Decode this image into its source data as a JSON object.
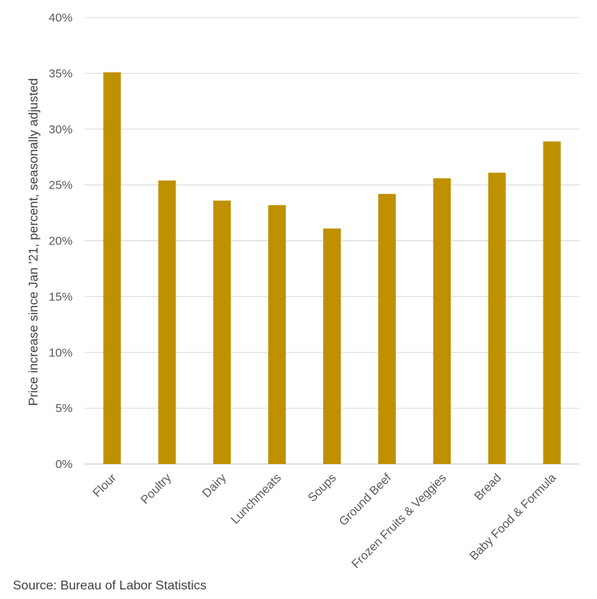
{
  "chart_data": {
    "type": "bar",
    "categories": [
      "Flour",
      "Poultry",
      "Dairy",
      "Lunchmeats",
      "Soups",
      "Ground Beef",
      "Frozen Fruits & Veggies",
      "Bread",
      "Baby Food & Formula"
    ],
    "values": [
      35.1,
      25.4,
      23.6,
      23.2,
      21.1,
      24.2,
      25.6,
      26.1,
      28.9
    ],
    "ylabel": "Price increase since Jan '21, percent, seasonally adjusted",
    "xlabel": "",
    "ylim": [
      0,
      40
    ],
    "yticks": [
      0,
      5,
      10,
      15,
      20,
      25,
      30,
      35,
      40
    ],
    "ytick_labels": [
      "0%",
      "5%",
      "10%",
      "15%",
      "20%",
      "25%",
      "30%",
      "35%",
      "40%"
    ],
    "bar_color": "#bf9000",
    "grid": true
  },
  "source": "Source: Bureau of Labor Statistics"
}
